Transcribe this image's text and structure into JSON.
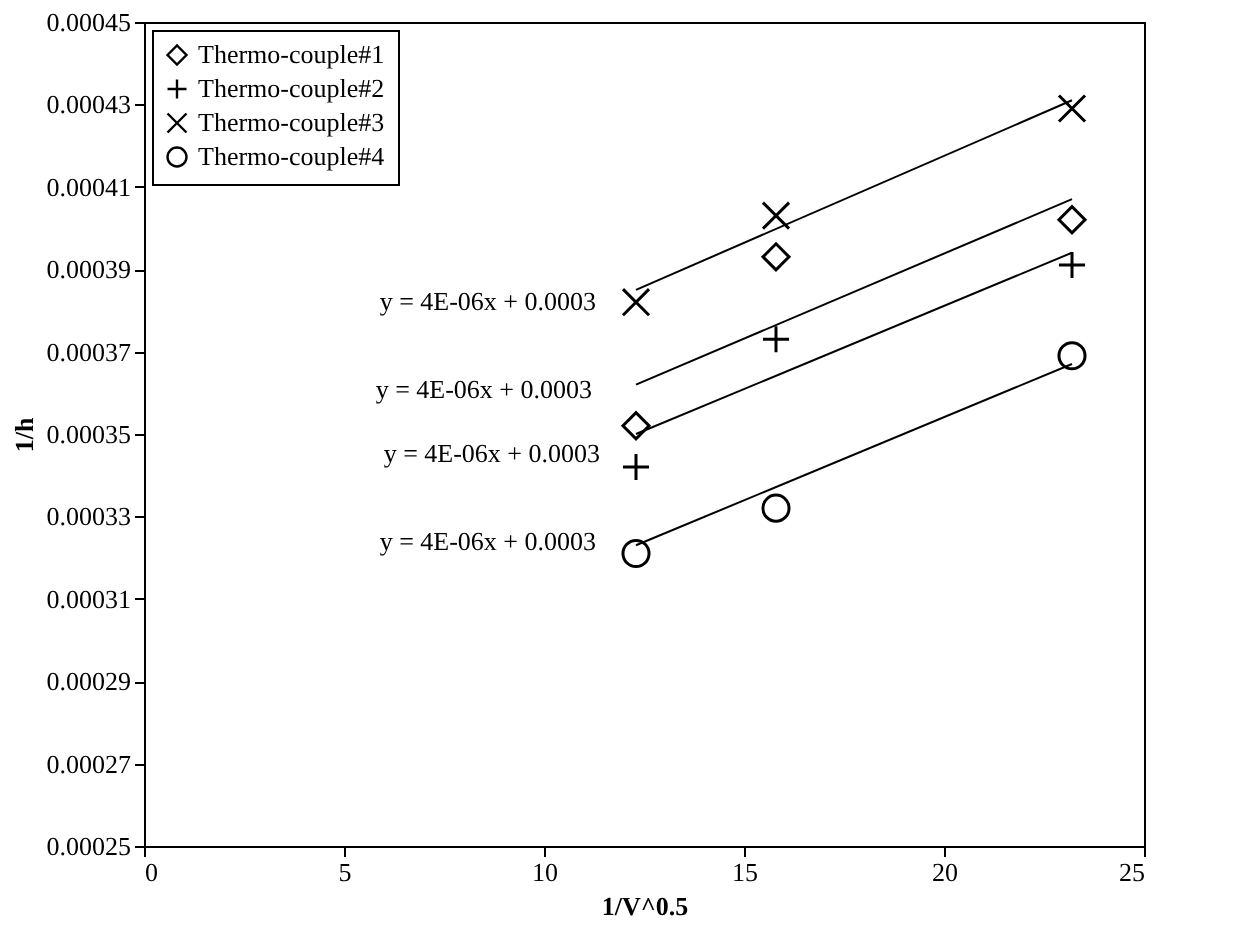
{
  "chart_data": {
    "type": "scatter",
    "xlabel": "1/V^0.5",
    "ylabel": "1/h",
    "xlim": [
      0,
      25
    ],
    "xticks": [
      0,
      5,
      10,
      15,
      20,
      25
    ],
    "ylim": [
      0.00025,
      0.00045
    ],
    "yticks": [
      0.00025,
      0.00027,
      0.00029,
      0.00031,
      0.00033,
      0.00035,
      0.00037,
      0.00039,
      0.00041,
      0.00043,
      0.00045
    ],
    "grid": false,
    "legend": "top left",
    "series": [
      {
        "name": "Thermo-couple#1",
        "marker": "diamond",
        "color": "#000000",
        "x": [
          12.3,
          15.8,
          23.2
        ],
        "values": [
          0.000352,
          0.000393,
          0.000402
        ]
      },
      {
        "name": "Thermo-couple#2",
        "marker": "cross",
        "color": "#000000",
        "x": [
          12.3,
          15.8,
          23.2
        ],
        "values": [
          0.000342,
          0.000373,
          0.000391
        ]
      },
      {
        "name": "Thermo-couple#3",
        "marker": "x",
        "color": "#000000",
        "x": [
          12.3,
          15.8,
          23.2
        ],
        "values": [
          0.000382,
          0.000403,
          0.000429
        ]
      },
      {
        "name": "Thermo-couple#4",
        "marker": "circle",
        "color": "#000000",
        "x": [
          12.3,
          15.8,
          23.2
        ],
        "values": [
          0.000321,
          0.000332,
          0.000369
        ]
      },
      {
        "type": "line",
        "line_style": "solid",
        "color": "#000000",
        "x": [
          12.3,
          23.2
        ],
        "values": [
          0.000362,
          0.000407
        ]
      },
      {
        "type": "line",
        "line_style": "solid",
        "color": "#000000",
        "x": [
          12.3,
          23.2
        ],
        "values": [
          0.00035,
          0.000394
        ]
      },
      {
        "type": "line",
        "line_style": "solid",
        "color": "#000000",
        "x": [
          12.3,
          23.2
        ],
        "values": [
          0.000385,
          0.000431
        ]
      },
      {
        "type": "line",
        "line_style": "solid",
        "color": "#000000",
        "x": [
          12.3,
          23.2
        ],
        "values": [
          0.000323,
          0.000367
        ]
      }
    ],
    "annotations": [
      "y = 4E-06x + 0.0003",
      "y = 4E-06x + 0.0003",
      "y = 4E-06x + 0.0003",
      "y = 4E-06x + 0.0003"
    ]
  }
}
